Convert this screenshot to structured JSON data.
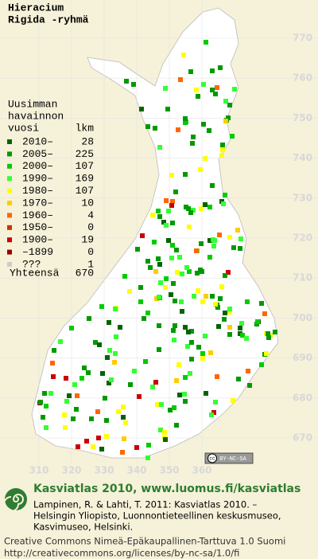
{
  "header": {
    "title": [
      "Hieracium",
      "Rigida -ryhmä"
    ]
  },
  "legend": {
    "heading": [
      "Uusimman",
      "havainnon",
      "vuosi"
    ],
    "count_heading": "lkm",
    "rows": [
      {
        "label": "2010–",
        "count": 28,
        "color": "#006400"
      },
      {
        "label": "2005–",
        "count": 225,
        "color": "#009a00"
      },
      {
        "label": "2000–",
        "count": 107,
        "color": "#00cc00"
      },
      {
        "label": "1990–",
        "count": 169,
        "color": "#33ff33"
      },
      {
        "label": "1980–",
        "count": 107,
        "color": "#ffff00"
      },
      {
        "label": "1970–",
        "count": 10,
        "color": "#ffcc00"
      },
      {
        "label": "1960–",
        "count": 4,
        "color": "#ff6600"
      },
      {
        "label": "1950–",
        "count": 0,
        "color": "#cc3300"
      },
      {
        "label": "1900–",
        "count": 19,
        "color": "#cc0000"
      },
      {
        "label": "–1899",
        "count": 0,
        "color": "#990000"
      },
      {
        "label": "???",
        "count": 1,
        "color": "#cccccc"
      }
    ],
    "total": {
      "label": "Yhteensä",
      "count": 670
    }
  },
  "grid": {
    "y_labels": [
      770,
      760,
      750,
      740,
      730,
      720,
      710,
      700,
      690,
      680,
      670
    ],
    "x_labels": [
      310,
      320,
      330,
      340,
      350,
      360
    ]
  },
  "badge": {
    "icon": "cc",
    "text": "BY-NC-SA"
  },
  "footer": {
    "site": "Kasviatlas 2010, www.luomus.fi/kasviatlas",
    "citation": [
      "Lampinen, R. & Lahti, T. 2011: Kasviatlas 2010. –",
      "Helsingin Yliopisto, Luonnontieteellinen keskusmuseo,",
      "Kasvimuseo, Helsinki."
    ],
    "license": [
      "Creative Commons Nimeä-Epäkaupallinen-Tarttuva 1.0 Suomi",
      "http://creativecommons.org/licenses/by-nc-sa/1.0/fi"
    ]
  }
}
